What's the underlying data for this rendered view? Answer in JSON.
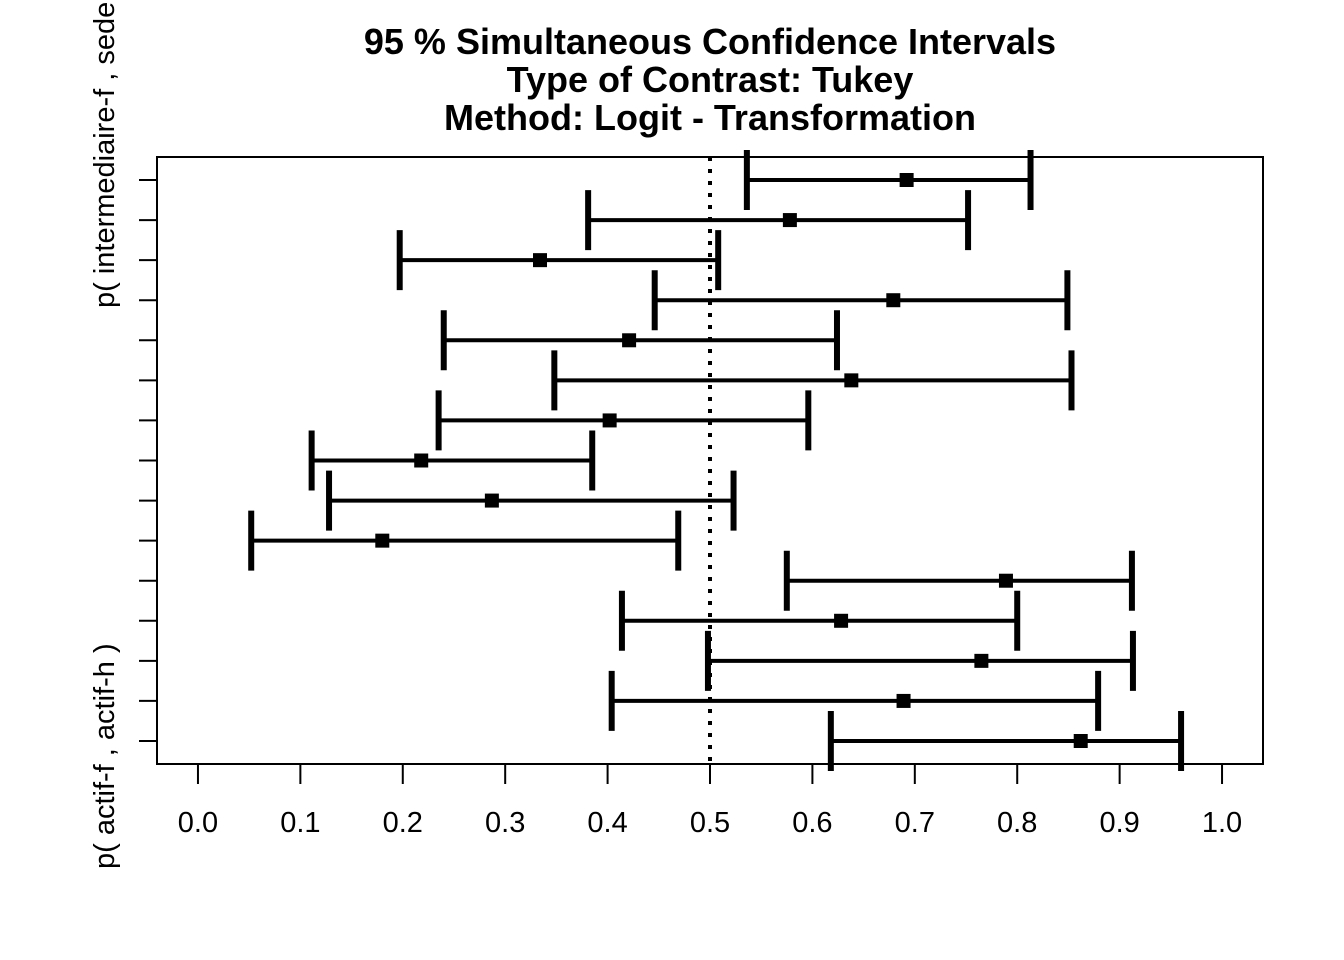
{
  "chart_data": {
    "type": "interval",
    "title_lines": [
      "95 % Simultaneous Confidence Intervals",
      "Type of Contrast: Tukey",
      "Method: Logit - Transformation"
    ],
    "xlim": [
      -0.04,
      1.04
    ],
    "x_ticks": [
      0.0,
      0.1,
      0.2,
      0.3,
      0.4,
      0.5,
      0.6,
      0.7,
      0.8,
      0.9,
      1.0
    ],
    "x_tick_labels": [
      "0.0",
      "0.1",
      "0.2",
      "0.3",
      "0.4",
      "0.5",
      "0.6",
      "0.7",
      "0.8",
      "0.9",
      "1.0"
    ],
    "reference_line": 0.5,
    "y_labels": [
      {
        "text": "p( actif-f , actif-h )",
        "row": 0
      },
      {
        "text": "p( intermediaire-f , sedentaire-f )",
        "row": 14
      }
    ],
    "intervals": [
      {
        "estimate": 0.862,
        "lower": 0.618,
        "upper": 0.96
      },
      {
        "estimate": 0.689,
        "lower": 0.404,
        "upper": 0.879
      },
      {
        "estimate": 0.765,
        "lower": 0.498,
        "upper": 0.913
      },
      {
        "estimate": 0.628,
        "lower": 0.414,
        "upper": 0.8
      },
      {
        "estimate": 0.789,
        "lower": 0.575,
        "upper": 0.912
      },
      {
        "estimate": 0.18,
        "lower": 0.052,
        "upper": 0.469
      },
      {
        "estimate": 0.287,
        "lower": 0.128,
        "upper": 0.523
      },
      {
        "estimate": 0.218,
        "lower": 0.111,
        "upper": 0.385
      },
      {
        "estimate": 0.402,
        "lower": 0.235,
        "upper": 0.596
      },
      {
        "estimate": 0.638,
        "lower": 0.348,
        "upper": 0.853
      },
      {
        "estimate": 0.421,
        "lower": 0.24,
        "upper": 0.624
      },
      {
        "estimate": 0.679,
        "lower": 0.446,
        "upper": 0.849
      },
      {
        "estimate": 0.334,
        "lower": 0.197,
        "upper": 0.508
      },
      {
        "estimate": 0.578,
        "lower": 0.381,
        "upper": 0.752
      },
      {
        "estimate": 0.692,
        "lower": 0.536,
        "upper": 0.813
      }
    ],
    "grid": false,
    "legend": "none"
  }
}
